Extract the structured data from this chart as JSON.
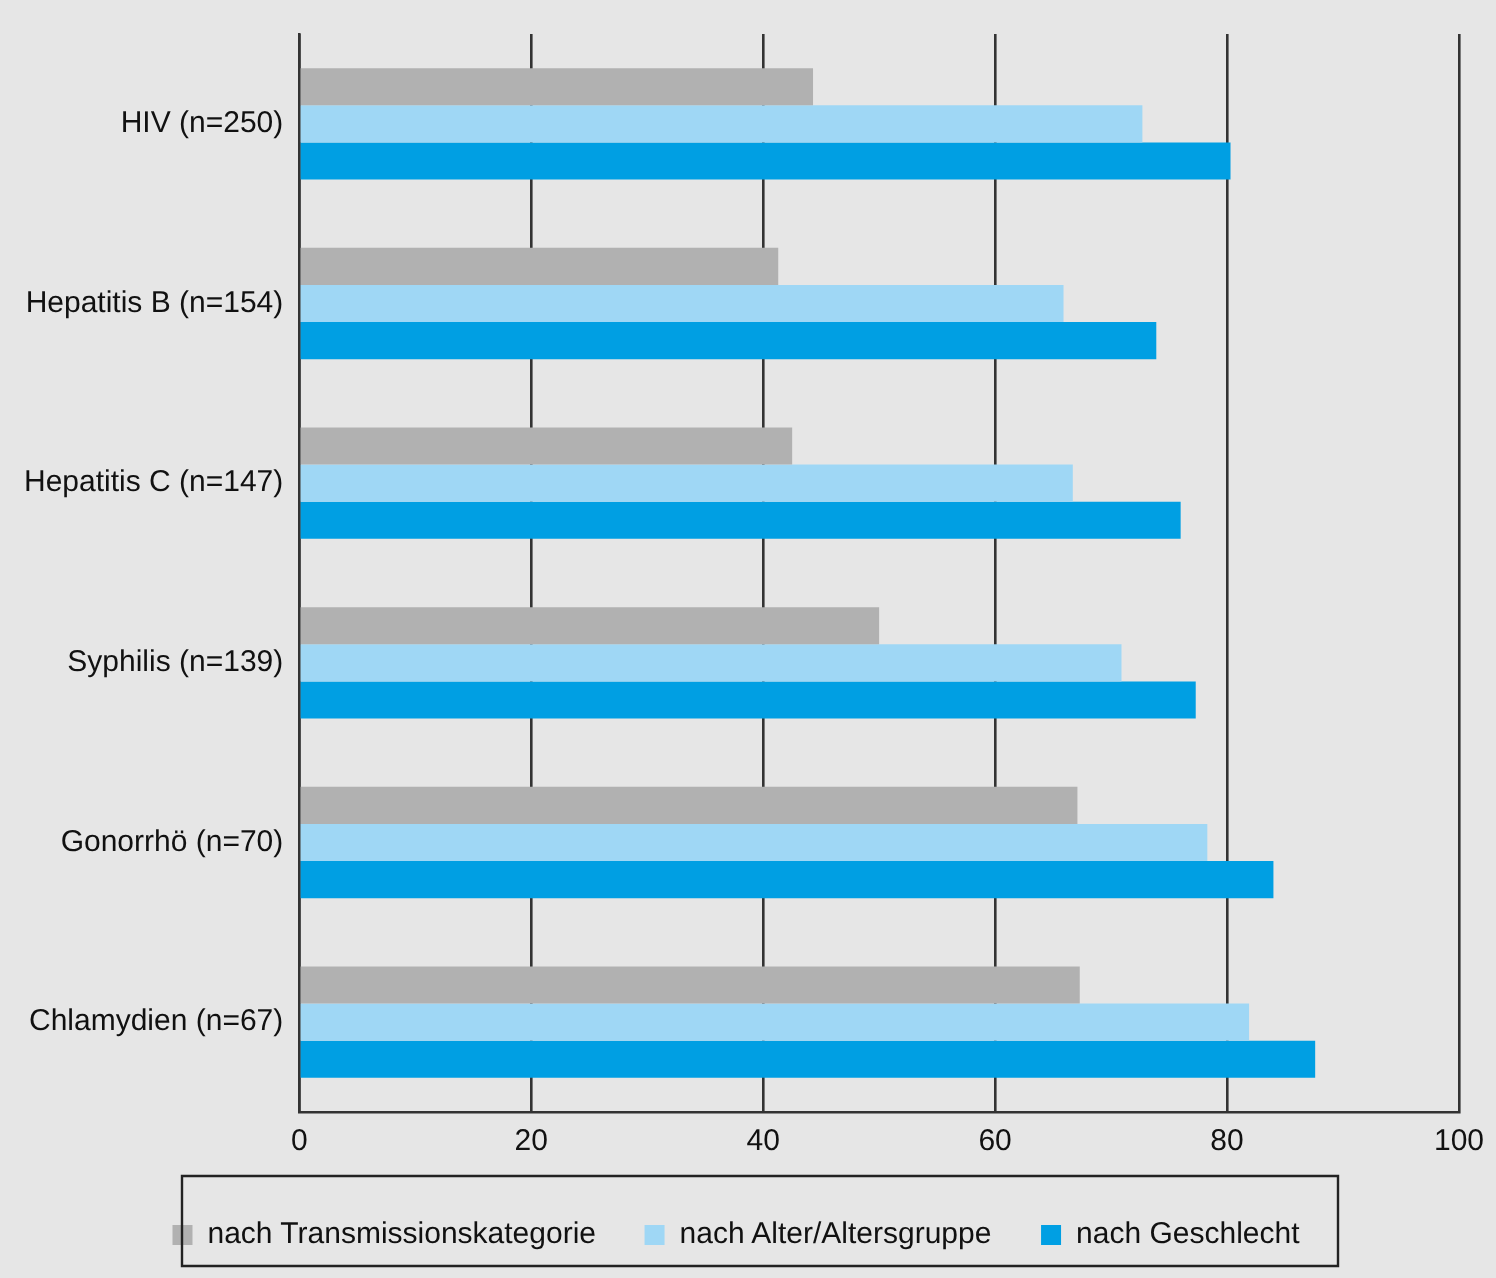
{
  "chart_data": {
    "type": "bar",
    "orientation": "horizontal",
    "categories": [
      "HIV (n=250)",
      "Hepatitis B (n=154)",
      "Hepatitis C (n=147)",
      "Syphilis (n=139)",
      "Gonorrhö (n=70)",
      "Chlamydien (n=67)"
    ],
    "series": [
      {
        "name": "nach Transmissionskategorie",
        "color": "#b1b1b1",
        "values": [
          44.3,
          41.3,
          42.5,
          50.0,
          67.1,
          67.3
        ]
      },
      {
        "name": "nach Alter/Altersgruppe",
        "color": "#9fd7f5",
        "values": [
          72.7,
          65.9,
          66.7,
          70.9,
          78.3,
          81.9
        ]
      },
      {
        "name": "nach Geschlecht",
        "color": "#009fe3",
        "values": [
          80.3,
          73.9,
          76.0,
          77.3,
          84.0,
          87.6
        ]
      }
    ],
    "xlim": [
      0,
      100
    ],
    "xticks": [
      0,
      20,
      40,
      60,
      80,
      100
    ],
    "grid": "x",
    "legend": "bottom"
  }
}
